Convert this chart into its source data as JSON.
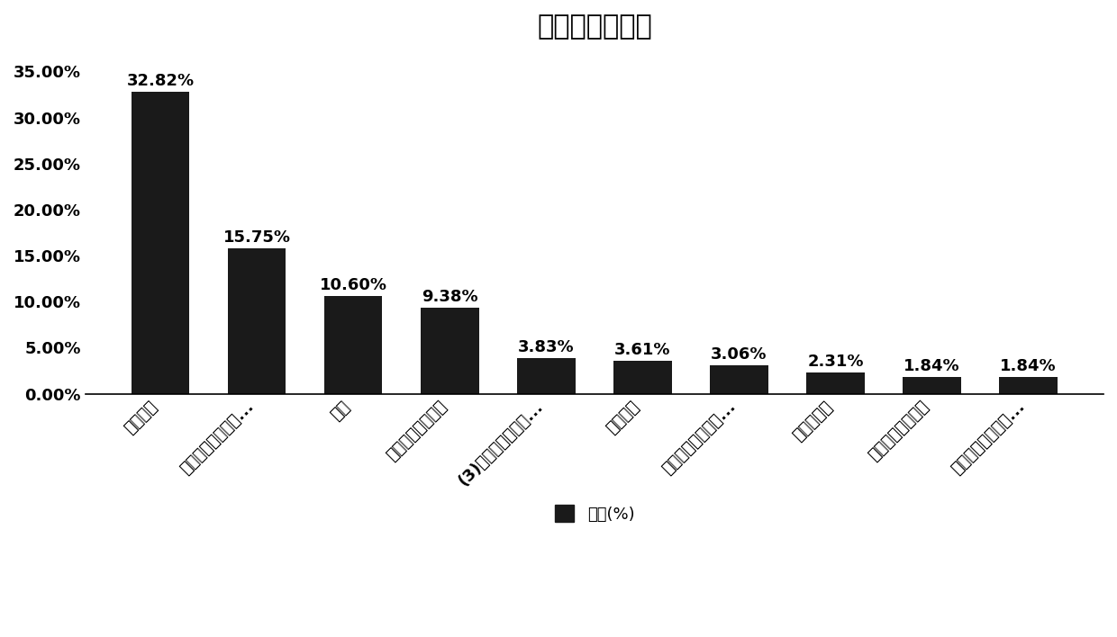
{
  "title": "行业用户数占比",
  "categories": [
    "综合零售",
    "纺织、服装及日用...",
    "电信",
    "广播电视传输服务",
    "(3)机动车、电子产...",
    "正餐服务",
    "货摊、无店铺及其...",
    "其他餐饮业",
    "其他未列明服务业",
    "食品、饮料及烟草..."
  ],
  "values": [
    32.82,
    15.75,
    10.6,
    9.38,
    3.83,
    3.61,
    3.06,
    2.31,
    1.84,
    1.84
  ],
  "bar_color": "#1a1a1a",
  "ylabel_ticks": [
    "0.00%",
    "5.00%",
    "10.00%",
    "15.00%",
    "20.00%",
    "25.00%",
    "30.00%",
    "35.00%"
  ],
  "ylim": [
    0,
    37
  ],
  "legend_label": "占比(%)",
  "title_fontsize": 22,
  "tick_fontsize": 13,
  "label_fontsize": 13,
  "annotation_fontsize": 13
}
